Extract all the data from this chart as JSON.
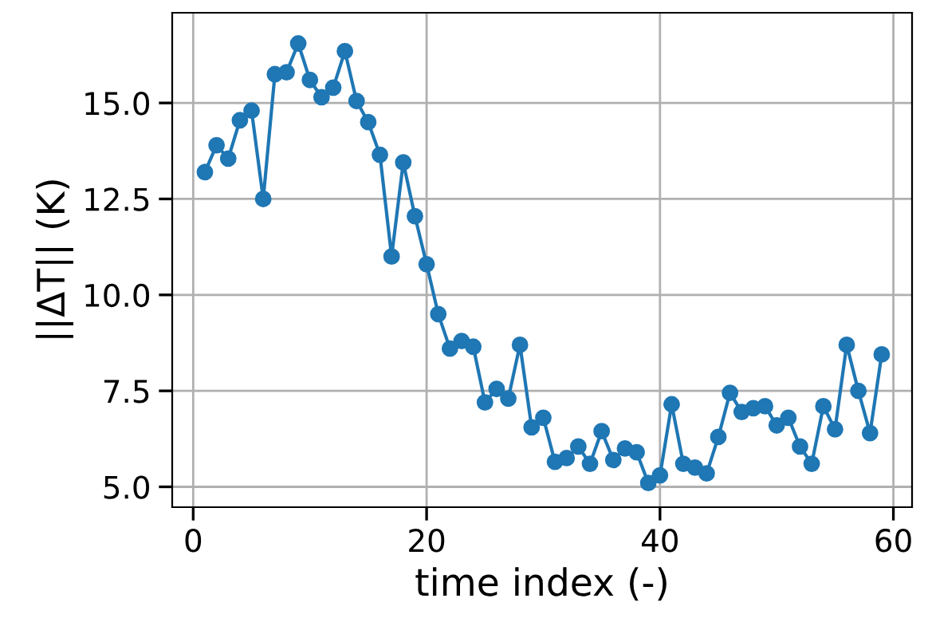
{
  "chart_data": {
    "type": "line",
    "xlabel": "time index (-)",
    "ylabel": "||ΔT|| (K)",
    "x": [
      1,
      2,
      3,
      4,
      5,
      6,
      7,
      8,
      9,
      10,
      11,
      12,
      13,
      14,
      15,
      16,
      17,
      18,
      19,
      20,
      21,
      22,
      23,
      24,
      25,
      26,
      27,
      28,
      29,
      30,
      31,
      32,
      33,
      34,
      35,
      36,
      37,
      38,
      39,
      40,
      41,
      42,
      43,
      44,
      45,
      46,
      47,
      48,
      49,
      50,
      51,
      52,
      53,
      54,
      55,
      56,
      57,
      58,
      59
    ],
    "series": [
      {
        "color": "#1f77b4",
        "values": [
          13.2,
          13.9,
          13.55,
          14.55,
          14.8,
          12.5,
          15.75,
          15.8,
          16.55,
          15.6,
          15.15,
          15.4,
          16.35,
          15.05,
          14.5,
          13.65,
          11.0,
          13.45,
          12.05,
          10.8,
          9.5,
          8.6,
          8.8,
          8.65,
          7.2,
          7.55,
          7.3,
          8.7,
          6.55,
          6.8,
          5.65,
          5.75,
          6.05,
          5.6,
          6.45,
          5.7,
          6.0,
          5.9,
          5.1,
          5.3,
          7.15,
          5.6,
          5.5,
          5.35,
          6.3,
          7.45,
          6.95,
          7.05,
          7.1,
          6.6,
          6.8,
          6.05,
          5.6,
          7.1,
          6.5,
          8.7,
          7.5,
          6.4,
          8.45
        ]
      }
    ],
    "xlim": [
      -1.8,
      61.6
    ],
    "ylim": [
      4.47,
      17.35
    ],
    "xticks": [
      0,
      20,
      40,
      60
    ],
    "yticks": [
      {
        "value": 5,
        "label": "5.0"
      },
      {
        "value": 7.5,
        "label": "7.5"
      },
      {
        "value": 10,
        "label": "10.0"
      },
      {
        "value": 12.5,
        "label": "12.5"
      },
      {
        "value": 15,
        "label": "15.0"
      }
    ],
    "grid": true,
    "marker": "circle",
    "line_style": "solid"
  }
}
